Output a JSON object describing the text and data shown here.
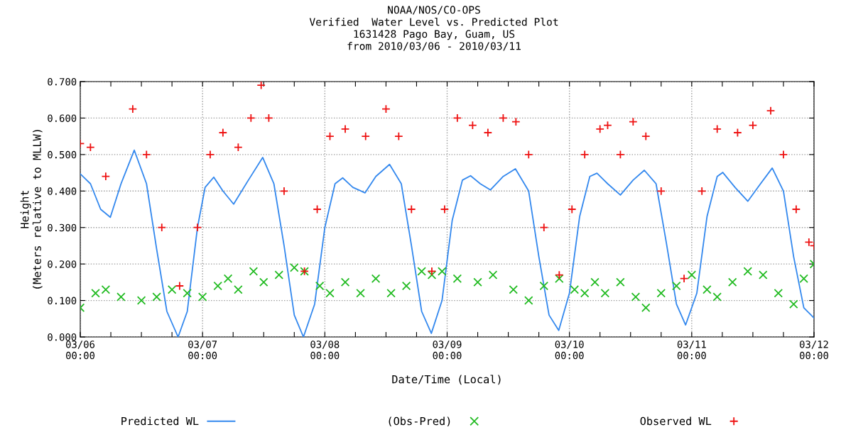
{
  "chart_data": {
    "type": "scatter",
    "title": "NOAA/NOS/CO-OPS",
    "subtitle": "Verified  Water Level vs. Predicted Plot\n1631428 Pago Bay, Guam, US\nfrom 2010/03/06 - 2010/03/11",
    "xlabel": "Date/Time (Local)",
    "ylabel": "Height\n(Meters relative to MLLW)",
    "xlim": [
      "2010-03-06T00:00",
      "2010-03-12T00:00"
    ],
    "ylim": [
      0,
      0.7
    ],
    "xticks": [
      {
        "value": "2010-03-06T00:00",
        "label": "03/06\n00:00"
      },
      {
        "value": "2010-03-06T06:00",
        "label": null
      },
      {
        "value": "2010-03-06T12:00",
        "label": null
      },
      {
        "value": "2010-03-06T18:00",
        "label": null
      },
      {
        "value": "2010-03-07T00:00",
        "label": "03/07\n00:00"
      },
      {
        "value": "2010-03-07T06:00",
        "label": null
      },
      {
        "value": "2010-03-07T12:00",
        "label": null
      },
      {
        "value": "2010-03-07T18:00",
        "label": null
      },
      {
        "value": "2010-03-08T00:00",
        "label": "03/08\n00:00"
      },
      {
        "value": "2010-03-08T06:00",
        "label": null
      },
      {
        "value": "2010-03-08T12:00",
        "label": null
      },
      {
        "value": "2010-03-08T18:00",
        "label": null
      },
      {
        "value": "2010-03-09T00:00",
        "label": "03/09\n00:00"
      },
      {
        "value": "2010-03-09T06:00",
        "label": null
      },
      {
        "value": "2010-03-09T12:00",
        "label": null
      },
      {
        "value": "2010-03-09T18:00",
        "label": null
      },
      {
        "value": "2010-03-10T00:00",
        "label": "03/10\n00:00"
      },
      {
        "value": "2010-03-10T06:00",
        "label": null
      },
      {
        "value": "2010-03-10T12:00",
        "label": null
      },
      {
        "value": "2010-03-10T18:00",
        "label": null
      },
      {
        "value": "2010-03-11T00:00",
        "label": "03/11\n00:00"
      },
      {
        "value": "2010-03-11T06:00",
        "label": null
      },
      {
        "value": "2010-03-11T12:00",
        "label": null
      },
      {
        "value": "2010-03-11T18:00",
        "label": null
      },
      {
        "value": "2010-03-12T00:00",
        "label": "03/12\n00:00"
      }
    ],
    "yticks": [
      {
        "value": 0,
        "label": "0.000"
      },
      {
        "value": 0.1,
        "label": "0.100"
      },
      {
        "value": 0.2,
        "label": "0.200"
      },
      {
        "value": 0.3,
        "label": "0.300"
      },
      {
        "value": 0.4,
        "label": "0.400"
      },
      {
        "value": 0.5,
        "label": "0.500"
      },
      {
        "value": 0.6,
        "label": "0.600"
      },
      {
        "value": 0.7,
        "label": "0.700"
      }
    ],
    "grid": true,
    "legend": "bottom",
    "series": [
      {
        "name": "Predicted WL",
        "type": "line",
        "color": "#3388ee",
        "line_style": "solid",
        "marker": "none",
        "x": [
          "2010-03-06T00:00",
          "2010-03-06T02:00",
          "2010-03-06T04:00",
          "2010-03-06T05:54",
          "2010-03-06T08:00",
          "2010-03-06T10:36",
          "2010-03-06T13:00",
          "2010-03-06T15:00",
          "2010-03-06T17:00",
          "2010-03-06T19:12",
          "2010-03-06T21:00",
          "2010-03-06T23:00",
          "2010-03-07T00:30",
          "2010-03-07T02:12",
          "2010-03-07T04:00",
          "2010-03-07T06:06",
          "2010-03-07T09:00",
          "2010-03-07T11:48",
          "2010-03-07T14:00",
          "2010-03-07T16:00",
          "2010-03-07T18:00",
          "2010-03-07T19:48",
          "2010-03-07T22:00",
          "2010-03-08T00:00",
          "2010-03-08T02:00",
          "2010-03-08T03:30",
          "2010-03-08T05:30",
          "2010-03-08T07:54",
          "2010-03-08T10:00",
          "2010-03-08T12:42",
          "2010-03-08T15:00",
          "2010-03-08T17:00",
          "2010-03-08T19:00",
          "2010-03-08T20:54",
          "2010-03-08T23:00",
          "2010-03-09T01:00",
          "2010-03-09T03:00",
          "2010-03-09T04:36",
          "2010-03-09T06:30",
          "2010-03-09T08:30",
          "2010-03-09T11:00",
          "2010-03-09T13:24",
          "2010-03-09T16:00",
          "2010-03-09T18:00",
          "2010-03-09T20:00",
          "2010-03-09T21:54",
          "2010-03-10T00:00",
          "2010-03-10T02:00",
          "2010-03-10T04:00",
          "2010-03-10T05:24",
          "2010-03-10T07:30",
          "2010-03-10T10:00",
          "2010-03-10T12:30",
          "2010-03-10T14:42",
          "2010-03-10T17:00",
          "2010-03-10T19:00",
          "2010-03-10T21:00",
          "2010-03-10T22:48",
          "2010-03-11T01:00",
          "2010-03-11T03:00",
          "2010-03-11T05:00",
          "2010-03-11T06:06",
          "2010-03-11T08:30",
          "2010-03-11T11:00",
          "2010-03-11T13:30",
          "2010-03-11T15:48",
          "2010-03-11T18:00",
          "2010-03-11T20:00",
          "2010-03-11T22:00",
          "2010-03-12T00:00"
        ],
        "values": [
          0.447,
          0.42,
          0.35,
          0.328,
          0.42,
          0.512,
          0.42,
          0.24,
          0.07,
          0,
          0.07,
          0.3,
          0.41,
          0.438,
          0.4,
          0.364,
          0.43,
          0.492,
          0.42,
          0.25,
          0.06,
          0,
          0.09,
          0.3,
          0.42,
          0.436,
          0.41,
          0.395,
          0.44,
          0.473,
          0.42,
          0.25,
          0.07,
          0.01,
          0.1,
          0.32,
          0.43,
          0.442,
          0.42,
          0.403,
          0.44,
          0.461,
          0.4,
          0.22,
          0.06,
          0.018,
          0.12,
          0.33,
          0.44,
          0.449,
          0.42,
          0.389,
          0.43,
          0.457,
          0.42,
          0.26,
          0.09,
          0.033,
          0.12,
          0.33,
          0.44,
          0.451,
          0.41,
          0.372,
          0.42,
          0.463,
          0.4,
          0.22,
          0.08,
          0.052
        ]
      },
      {
        "name": "(Obs-Pred)",
        "color": "#22bb22",
        "marker": "x",
        "x": [
          "2010-03-06T00:00",
          "2010-03-06T03:00",
          "2010-03-06T05:00",
          "2010-03-06T08:00",
          "2010-03-06T12:00",
          "2010-03-06T15:00",
          "2010-03-06T18:00",
          "2010-03-06T21:00",
          "2010-03-07T00:00",
          "2010-03-07T03:00",
          "2010-03-07T05:00",
          "2010-03-07T07:00",
          "2010-03-07T10:00",
          "2010-03-07T12:00",
          "2010-03-07T15:00",
          "2010-03-07T18:00",
          "2010-03-07T20:00",
          "2010-03-07T23:00",
          "2010-03-08T01:00",
          "2010-03-08T04:00",
          "2010-03-08T07:00",
          "2010-03-08T10:00",
          "2010-03-08T13:00",
          "2010-03-08T16:00",
          "2010-03-08T19:00",
          "2010-03-08T21:00",
          "2010-03-08T23:00",
          "2010-03-09T02:00",
          "2010-03-09T06:00",
          "2010-03-09T09:00",
          "2010-03-09T13:00",
          "2010-03-09T16:00",
          "2010-03-09T19:00",
          "2010-03-09T22:00",
          "2010-03-10T01:00",
          "2010-03-10T03:00",
          "2010-03-10T05:00",
          "2010-03-10T07:00",
          "2010-03-10T10:00",
          "2010-03-10T13:00",
          "2010-03-10T15:00",
          "2010-03-10T18:00",
          "2010-03-10T21:00",
          "2010-03-11T00:00",
          "2010-03-11T03:00",
          "2010-03-11T05:00",
          "2010-03-11T08:00",
          "2010-03-11T11:00",
          "2010-03-11T14:00",
          "2010-03-11T17:00",
          "2010-03-11T20:00",
          "2010-03-11T22:00",
          "2010-03-12T00:00"
        ],
        "values": [
          0.08,
          0.12,
          0.13,
          0.11,
          0.1,
          0.11,
          0.13,
          0.12,
          0.11,
          0.14,
          0.16,
          0.13,
          0.18,
          0.15,
          0.17,
          0.19,
          0.18,
          0.14,
          0.12,
          0.15,
          0.12,
          0.16,
          0.12,
          0.14,
          0.18,
          0.17,
          0.18,
          0.16,
          0.15,
          0.17,
          0.13,
          0.1,
          0.14,
          0.16,
          0.13,
          0.12,
          0.15,
          0.12,
          0.15,
          0.11,
          0.08,
          0.12,
          0.14,
          0.17,
          0.13,
          0.11,
          0.15,
          0.18,
          0.17,
          0.12,
          0.09,
          0.16,
          0.2
        ]
      },
      {
        "name": "Observed WL",
        "color": "#ee1111",
        "marker": "cross",
        "x": [
          "2010-03-06T00:00",
          "2010-03-06T02:00",
          "2010-03-06T05:00",
          "2010-03-06T10:18",
          "2010-03-06T13:00",
          "2010-03-06T16:00",
          "2010-03-06T19:30",
          "2010-03-06T23:00",
          "2010-03-07T01:30",
          "2010-03-07T04:00",
          "2010-03-07T07:00",
          "2010-03-07T09:30",
          "2010-03-07T11:30",
          "2010-03-07T13:00",
          "2010-03-07T16:00",
          "2010-03-07T20:00",
          "2010-03-07T22:30",
          "2010-03-08T01:00",
          "2010-03-08T04:00",
          "2010-03-08T08:00",
          "2010-03-08T12:00",
          "2010-03-08T14:30",
          "2010-03-08T17:00",
          "2010-03-08T21:00",
          "2010-03-08T23:30",
          "2010-03-09T02:00",
          "2010-03-09T05:00",
          "2010-03-09T08:00",
          "2010-03-09T11:00",
          "2010-03-09T13:30",
          "2010-03-09T16:00",
          "2010-03-09T19:00",
          "2010-03-09T22:00",
          "2010-03-10T00:30",
          "2010-03-10T03:00",
          "2010-03-10T06:00",
          "2010-03-10T07:30",
          "2010-03-10T10:00",
          "2010-03-10T12:30",
          "2010-03-10T15:00",
          "2010-03-10T18:00",
          "2010-03-10T22:30",
          "2010-03-11T02:00",
          "2010-03-11T05:00",
          "2010-03-11T09:00",
          "2010-03-11T12:00",
          "2010-03-11T15:30",
          "2010-03-11T18:00",
          "2010-03-11T20:30",
          "2010-03-11T23:00",
          "2010-03-12T00:00"
        ],
        "values": [
          0.53,
          0.52,
          0.44,
          0.625,
          0.5,
          0.3,
          0.14,
          0.3,
          0.5,
          0.56,
          0.52,
          0.6,
          0.69,
          0.6,
          0.4,
          0.18,
          0.35,
          0.55,
          0.57,
          0.55,
          0.625,
          0.55,
          0.35,
          0.18,
          0.35,
          0.6,
          0.58,
          0.56,
          0.6,
          0.59,
          0.5,
          0.3,
          0.17,
          0.35,
          0.5,
          0.57,
          0.58,
          0.5,
          0.59,
          0.55,
          0.4,
          0.16,
          0.4,
          0.57,
          0.56,
          0.58,
          0.62,
          0.5,
          0.35,
          0.26,
          0.25
        ]
      }
    ]
  }
}
